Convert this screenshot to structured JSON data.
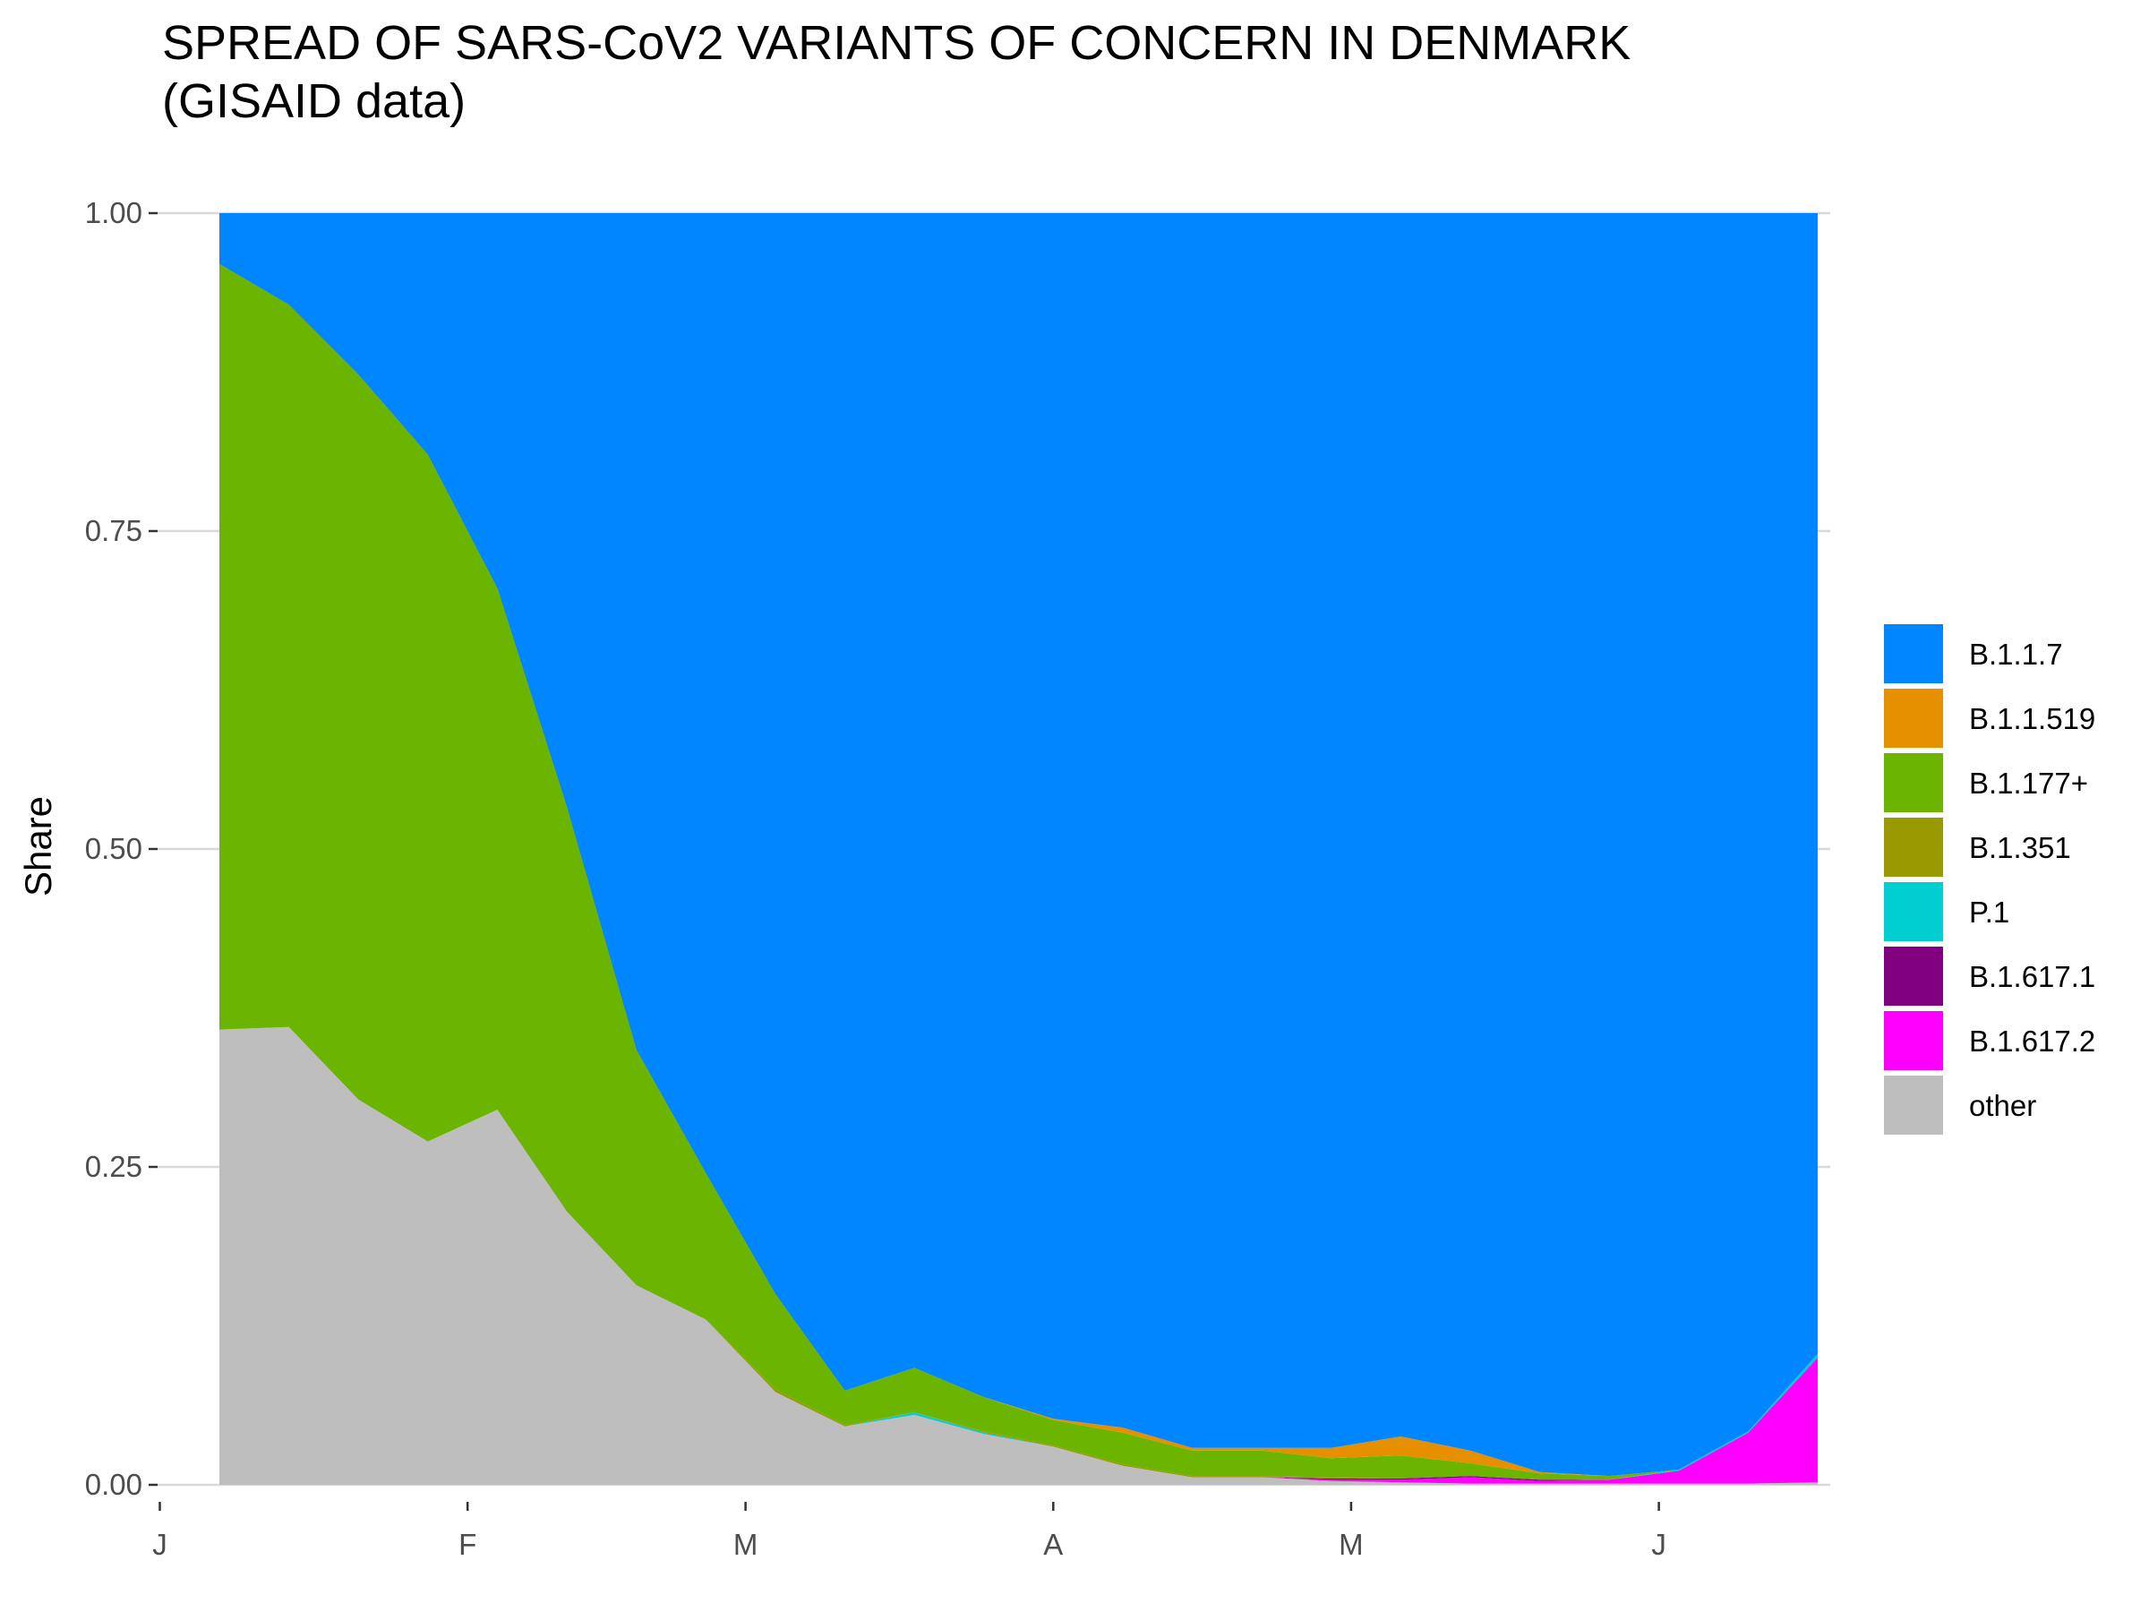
{
  "chart_data": {
    "type": "area",
    "stacked": "fill",
    "title": "SPREAD OF SARS-CoV2 VARIANTS OF CONCERN IN DENMARK",
    "subtitle": "(GISAID data)",
    "xlabel": "",
    "ylabel": "Share",
    "ylim": [
      0,
      1
    ],
    "y_ticks": [
      "0.00",
      "0.25",
      "0.50",
      "0.75",
      "1.00"
    ],
    "y_tick_values": [
      0,
      0.25,
      0.5,
      0.75,
      1
    ],
    "x_ticks": [
      {
        "label": "J",
        "date": "2021-01-01"
      },
      {
        "label": "F",
        "date": "2021-02-01"
      },
      {
        "label": "M",
        "date": "2021-03-01"
      },
      {
        "label": "A",
        "date": "2021-04-01"
      },
      {
        "label": "M",
        "date": "2021-05-01"
      },
      {
        "label": "J",
        "date": "2021-06-01"
      }
    ],
    "xlim": [
      "2021-01-01",
      "2021-06-30"
    ],
    "grid": true,
    "legend_position": "right",
    "x": [
      "2021-01-07",
      "2021-01-14",
      "2021-01-21",
      "2021-01-28",
      "2021-02-04",
      "2021-02-11",
      "2021-02-18",
      "2021-02-25",
      "2021-03-04",
      "2021-03-11",
      "2021-03-18",
      "2021-03-25",
      "2021-04-01",
      "2021-04-08",
      "2021-04-15",
      "2021-04-22",
      "2021-04-29",
      "2021-05-06",
      "2021-05-13",
      "2021-05-20",
      "2021-05-27",
      "2021-06-03",
      "2021-06-10",
      "2021-06-17"
    ],
    "series": [
      {
        "name": "other",
        "color": "#BEBEBE",
        "values": [
          0.358,
          0.36,
          0.303,
          0.27,
          0.295,
          0.215,
          0.157,
          0.13,
          0.073,
          0.046,
          0.055,
          0.04,
          0.03,
          0.015,
          0.006,
          0.006,
          0.003,
          0.002,
          0.001,
          0.001,
          0.001,
          0.001,
          0.001,
          0.002
        ]
      },
      {
        "name": "B.1.617.2",
        "color": "#FF00FF",
        "values": [
          0,
          0,
          0,
          0,
          0,
          0,
          0,
          0,
          0,
          0,
          0,
          0,
          0,
          0,
          0,
          0,
          0.001,
          0.002,
          0.005,
          0.002,
          0.003,
          0.01,
          0.04,
          0.098
        ]
      },
      {
        "name": "B.1.617.1",
        "color": "#800080",
        "values": [
          0,
          0,
          0,
          0,
          0,
          0,
          0,
          0,
          0,
          0,
          0,
          0,
          0,
          0,
          0,
          0,
          0.001,
          0.001,
          0.001,
          0.001,
          0,
          0,
          0,
          0
        ]
      },
      {
        "name": "P.1",
        "color": "#00CED1",
        "values": [
          0,
          0,
          0,
          0,
          0,
          0,
          0,
          0,
          0,
          0,
          0.002,
          0.001,
          0,
          0,
          0,
          0,
          0,
          0,
          0,
          0,
          0,
          0.001,
          0.001,
          0.003
        ]
      },
      {
        "name": "B.1.351",
        "color": "#999900",
        "values": [
          0,
          0,
          0,
          0,
          0,
          0,
          0,
          0,
          0.002,
          0.001,
          0,
          0.001,
          0.001,
          0.001,
          0.001,
          0.001,
          0.001,
          0,
          0,
          0,
          0,
          0,
          0,
          0
        ]
      },
      {
        "name": "B.1.177+",
        "color": "#6BB400",
        "values": [
          0.602,
          0.568,
          0.57,
          0.54,
          0.41,
          0.318,
          0.185,
          0.115,
          0.075,
          0.027,
          0.035,
          0.027,
          0.02,
          0.025,
          0.02,
          0.02,
          0.015,
          0.018,
          0.01,
          0.005,
          0.003,
          0,
          0,
          0
        ]
      },
      {
        "name": "B.1.1.519",
        "color": "#E69000",
        "values": [
          0,
          0,
          0,
          0,
          0,
          0,
          0,
          0,
          0,
          0,
          0,
          0,
          0.001,
          0.004,
          0.002,
          0.002,
          0.008,
          0.015,
          0.01,
          0.001,
          0,
          0,
          0,
          0
        ]
      },
      {
        "name": "B.1.1.7",
        "color": "#0087FF",
        "values": [
          0.04,
          0.072,
          0.127,
          0.19,
          0.295,
          0.467,
          0.658,
          0.755,
          0.85,
          0.926,
          0.908,
          0.931,
          0.948,
          0.955,
          0.971,
          0.971,
          0.971,
          0.962,
          0.973,
          0.99,
          0.993,
          0.988,
          0.958,
          0.897
        ]
      }
    ],
    "legend_order": [
      "B.1.1.7",
      "B.1.1.519",
      "B.1.177+",
      "B.1.351",
      "P.1",
      "B.1.617.1",
      "B.1.617.2",
      "other"
    ]
  }
}
